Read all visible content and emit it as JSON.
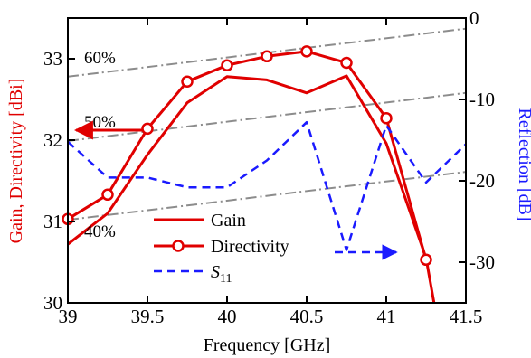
{
  "chart_data": {
    "type": "line",
    "x_axis": {
      "label": "Frequency [GHz]",
      "range": [
        39,
        41.5
      ],
      "ticks": [
        39,
        39.5,
        40,
        40.5,
        41,
        41.5
      ],
      "tick_labels": [
        "39",
        "39.5",
        "40",
        "40.5",
        "41",
        "41.5"
      ]
    },
    "y_axis_left": {
      "label": "Gain, Directivity [dBi]",
      "color": "#e00000",
      "range": [
        30,
        33.5
      ],
      "ticks": [
        30,
        31,
        32,
        33
      ],
      "tick_labels": [
        "30",
        "31",
        "32",
        "33"
      ]
    },
    "y_axis_right": {
      "label": "Reflection [dB]",
      "color": "#1a1aff",
      "range": [
        -35,
        0
      ],
      "ticks": [
        0,
        -10,
        -20,
        -30
      ],
      "tick_labels": [
        "0",
        "-10",
        "-20",
        "-30"
      ]
    },
    "series": [
      {
        "name": "Gain",
        "axis": "left",
        "color": "#e00000",
        "style": "solid",
        "x": [
          39,
          39.25,
          39.5,
          39.75,
          40,
          40.25,
          40.5,
          40.75,
          41,
          41.25,
          41.3
        ],
        "y": [
          30.72,
          31.1,
          31.82,
          32.46,
          32.78,
          32.74,
          32.58,
          32.79,
          31.96,
          30.55,
          30.0
        ]
      },
      {
        "name": "Directivity",
        "axis": "left",
        "color": "#e00000",
        "style": "solid-markers",
        "marker": "circle",
        "x": [
          39,
          39.25,
          39.5,
          39.75,
          40,
          40.25,
          40.5,
          40.75,
          41,
          41.25
        ],
        "y": [
          31.03,
          31.33,
          32.14,
          32.72,
          32.92,
          33.03,
          33.09,
          32.95,
          32.27,
          30.53
        ]
      },
      {
        "name": "S11",
        "name_main": "S",
        "name_sub": "11",
        "axis": "right",
        "color": "#1a1aff",
        "style": "dashed",
        "x": [
          39,
          39.25,
          39.5,
          39.75,
          40,
          40.25,
          40.5,
          40.75,
          41,
          41.25,
          41.5
        ],
        "y": [
          -15.2,
          -19.6,
          -19.6,
          -20.8,
          -20.8,
          -17.5,
          -12.8,
          -28.5,
          -13.2,
          -20.2,
          -15.5
        ]
      }
    ],
    "efficiency_lines": [
      {
        "label": "60%",
        "x": [
          39,
          41.5
        ],
        "y": [
          32.78,
          33.37
        ]
      },
      {
        "label": "50%",
        "x": [
          39,
          41.5
        ],
        "y": [
          31.99,
          32.58
        ]
      },
      {
        "label": "40%",
        "x": [
          39,
          41.5
        ],
        "y": [
          31.02,
          31.61
        ]
      }
    ],
    "legend_position": "bottom-center",
    "grid": false
  }
}
